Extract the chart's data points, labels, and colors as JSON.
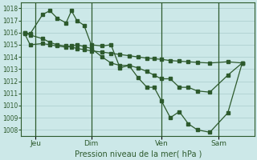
{
  "background_color": "#cce8e8",
  "grid_color": "#aacccc",
  "line_color": "#2d5a2d",
  "xlabel": "Pression niveau de la mer( hPa )",
  "ylim": [
    1007.5,
    1018.5
  ],
  "yticks": [
    1008,
    1009,
    1010,
    1011,
    1012,
    1013,
    1014,
    1015,
    1016,
    1017,
    1018
  ],
  "xlim": [
    0,
    13.0
  ],
  "day_labels": [
    "Jeu",
    "Dim",
    "Ven",
    "Sam"
  ],
  "day_positions": [
    0.8,
    3.9,
    7.8,
    11.0
  ],
  "s1x": [
    0.2,
    0.5,
    1.2,
    1.6,
    2.0,
    2.5,
    2.8,
    3.1,
    3.5,
    3.9,
    4.5,
    5.0,
    5.5,
    6.0,
    6.5,
    7.0,
    7.4,
    7.8,
    8.3,
    8.8,
    9.3,
    9.8,
    10.5,
    11.5,
    12.3
  ],
  "s1y": [
    1016.0,
    1015.9,
    1017.5,
    1017.8,
    1017.2,
    1016.8,
    1017.8,
    1017.0,
    1016.6,
    1015.0,
    1014.9,
    1015.0,
    1013.1,
    1013.3,
    1012.3,
    1011.5,
    1011.5,
    1010.4,
    1009.0,
    1009.5,
    1008.5,
    1008.0,
    1007.8,
    1009.4,
    1013.5
  ],
  "s2x": [
    0.2,
    0.5,
    1.2,
    1.6,
    2.0,
    2.5,
    2.8,
    3.1,
    3.5,
    3.9,
    4.5,
    5.0,
    5.5,
    6.0,
    6.5,
    7.0,
    7.4,
    7.8,
    8.3,
    8.8,
    9.3,
    9.8,
    10.5,
    11.5,
    12.3
  ],
  "s2y": [
    1016.0,
    1015.8,
    1015.5,
    1015.2,
    1015.0,
    1014.9,
    1014.8,
    1014.7,
    1014.6,
    1014.5,
    1014.4,
    1014.3,
    1014.2,
    1014.1,
    1014.0,
    1013.9,
    1013.85,
    1013.8,
    1013.7,
    1013.65,
    1013.6,
    1013.55,
    1013.5,
    1013.6,
    1013.5
  ],
  "s3x": [
    0.2,
    0.5,
    1.2,
    1.6,
    2.0,
    2.5,
    2.8,
    3.1,
    3.5,
    3.9,
    4.5,
    5.0,
    5.5,
    6.0,
    6.5,
    7.0,
    7.4,
    7.8,
    8.3,
    8.8,
    9.3,
    9.8,
    10.5,
    11.5,
    12.3
  ],
  "s3y": [
    1015.9,
    1015.0,
    1015.1,
    1015.0,
    1014.9,
    1014.8,
    1014.9,
    1015.0,
    1014.85,
    1014.7,
    1014.0,
    1013.5,
    1013.3,
    1013.3,
    1013.1,
    1012.8,
    1012.5,
    1012.2,
    1012.2,
    1011.5,
    1011.5,
    1011.2,
    1011.1,
    1012.5,
    1013.5
  ]
}
